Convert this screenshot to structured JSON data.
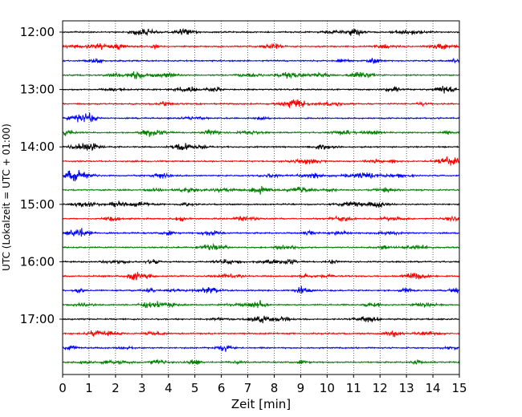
{
  "chart_data": {
    "type": "line",
    "title": "",
    "xlabel": "Zeit  [min]",
    "ylabel": "UTC (Lokalzeit = UTC + 01:00)",
    "xlim": [
      0,
      15
    ],
    "x_ticks": [
      0,
      1,
      2,
      3,
      4,
      5,
      6,
      7,
      8,
      9,
      10,
      11,
      12,
      13,
      14,
      15
    ],
    "y_tick_labels": [
      "12:00",
      "13:00",
      "14:00",
      "15:00",
      "16:00",
      "17:00"
    ],
    "y_tick_row_index": [
      0,
      4,
      8,
      12,
      16,
      20
    ],
    "row_interval_min": 15,
    "grid": "vertical dotted",
    "trace_colors": [
      "#000000",
      "#ff0000",
      "#0000ff",
      "#008000"
    ],
    "series": [
      {
        "start": "12:00",
        "color": "#000000"
      },
      {
        "start": "12:15",
        "color": "#ff0000"
      },
      {
        "start": "12:30",
        "color": "#0000ff"
      },
      {
        "start": "12:45",
        "color": "#008000"
      },
      {
        "start": "13:00",
        "color": "#000000"
      },
      {
        "start": "13:15",
        "color": "#ff0000"
      },
      {
        "start": "13:30",
        "color": "#0000ff"
      },
      {
        "start": "13:45",
        "color": "#008000"
      },
      {
        "start": "14:00",
        "color": "#000000"
      },
      {
        "start": "14:15",
        "color": "#ff0000"
      },
      {
        "start": "14:30",
        "color": "#0000ff"
      },
      {
        "start": "14:45",
        "color": "#008000"
      },
      {
        "start": "15:00",
        "color": "#000000"
      },
      {
        "start": "15:15",
        "color": "#ff0000"
      },
      {
        "start": "15:30",
        "color": "#0000ff"
      },
      {
        "start": "15:45",
        "color": "#008000"
      },
      {
        "start": "16:00",
        "color": "#000000"
      },
      {
        "start": "16:15",
        "color": "#ff0000"
      },
      {
        "start": "16:30",
        "color": "#0000ff"
      },
      {
        "start": "16:45",
        "color": "#008000"
      },
      {
        "start": "17:00",
        "color": "#000000"
      },
      {
        "start": "17:15",
        "color": "#ff0000"
      },
      {
        "start": "17:30",
        "color": "#0000ff"
      },
      {
        "start": "17:45",
        "color": "#008000"
      }
    ]
  }
}
